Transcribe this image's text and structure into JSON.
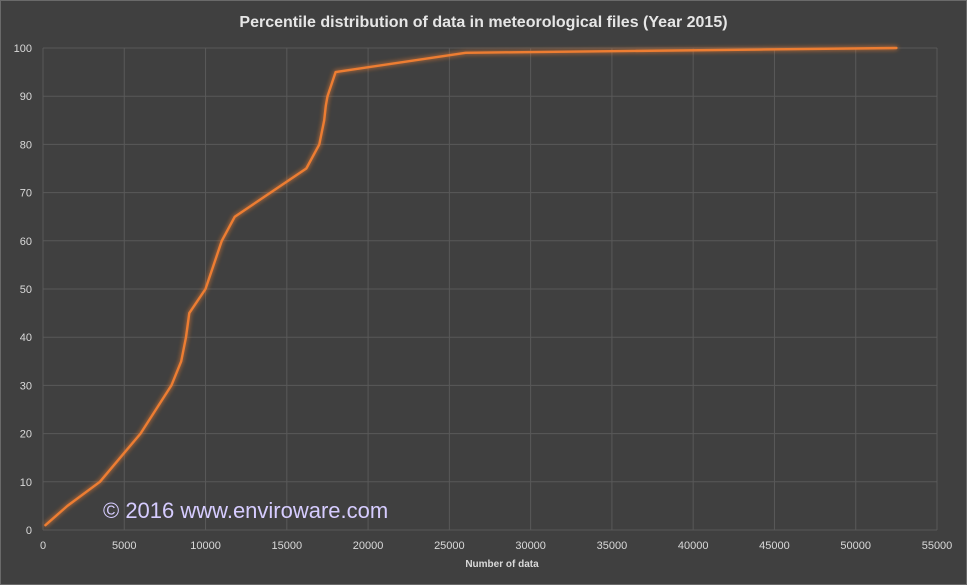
{
  "chart_data": {
    "type": "line",
    "title": "Percentile distribution of data in meteorological files (Year 2015)",
    "xlabel": "Number of data",
    "ylabel": "",
    "xlim": [
      0,
      55000
    ],
    "ylim": [
      0,
      100
    ],
    "xticks": [
      0,
      5000,
      10000,
      15000,
      20000,
      25000,
      30000,
      35000,
      40000,
      45000,
      50000,
      55000
    ],
    "yticks": [
      0,
      10,
      20,
      30,
      40,
      50,
      60,
      70,
      80,
      90,
      100
    ],
    "grid": true,
    "legend": "none",
    "series": [
      {
        "color": "#ed7d31",
        "x": [
          150,
          1500,
          3500,
          6000,
          7900,
          8500,
          8800,
          9000,
          10000,
          11000,
          11800,
          16200,
          17000,
          17300,
          17400,
          17500,
          18000,
          26000,
          52500
        ],
        "y": [
          1,
          5,
          10,
          20,
          30,
          35,
          40,
          45,
          50,
          60,
          65,
          75,
          80,
          85,
          88,
          90,
          95,
          99,
          100
        ]
      }
    ]
  },
  "watermark": "© 2016 www.enviroware.com",
  "colors": {
    "background": "#404040",
    "gridline": "#595959",
    "line": "#ed7d31",
    "text": "#d9d9d9",
    "watermark": "#d6ccff"
  }
}
